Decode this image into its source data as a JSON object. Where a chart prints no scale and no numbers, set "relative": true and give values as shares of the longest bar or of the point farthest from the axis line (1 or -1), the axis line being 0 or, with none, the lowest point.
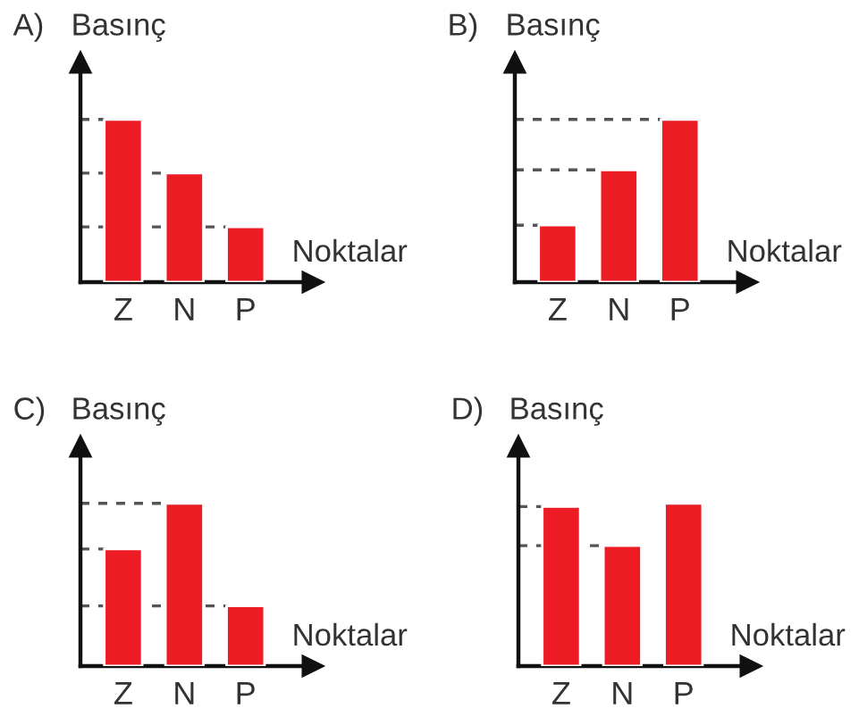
{
  "chart_data": [
    {
      "type": "bar",
      "title": "A)",
      "ylabel": "Basınç",
      "xlabel": "Noktalar",
      "categories": [
        "Z",
        "N",
        "P"
      ],
      "values": [
        1,
        0.67,
        0.34
      ],
      "color": "#ed1c24",
      "relative": true,
      "ref_lines": [
        {
          "axis": "y",
          "value": 1,
          "line_style": "dashed",
          "color": "#555555"
        },
        {
          "axis": "y",
          "value": 0.67,
          "line_style": "dashed",
          "color": "#555555"
        },
        {
          "axis": "y",
          "value": 0.34,
          "line_style": "dashed",
          "color": "#555555"
        }
      ]
    },
    {
      "type": "bar",
      "title": "B)",
      "ylabel": "Basınç",
      "xlabel": "Noktalar",
      "categories": [
        "Z",
        "N",
        "P"
      ],
      "values": [
        0.35,
        0.69,
        1
      ],
      "color": "#ed1c24",
      "relative": true,
      "ref_lines": [
        {
          "axis": "y",
          "value": 1,
          "line_style": "dashed",
          "color": "#555555"
        },
        {
          "axis": "y",
          "value": 0.69,
          "line_style": "dashed",
          "color": "#555555"
        },
        {
          "axis": "y",
          "value": 0.35,
          "line_style": "dashed",
          "color": "#555555"
        }
      ]
    },
    {
      "type": "bar",
      "title": "C)",
      "ylabel": "Basınç",
      "xlabel": "Noktalar",
      "categories": [
        "Z",
        "N",
        "P"
      ],
      "values": [
        0.72,
        1,
        0.37
      ],
      "color": "#ed1c24",
      "relative": true,
      "ref_lines": [
        {
          "axis": "y",
          "value": 1,
          "line_style": "dashed",
          "color": "#555555"
        },
        {
          "axis": "y",
          "value": 0.72,
          "line_style": "dashed",
          "color": "#555555"
        },
        {
          "axis": "y",
          "value": 0.37,
          "line_style": "dashed",
          "color": "#555555"
        }
      ]
    },
    {
      "type": "bar",
      "title": "D)",
      "ylabel": "Basınç",
      "xlabel": "Noktalar",
      "categories": [
        "Z",
        "N",
        "P"
      ],
      "values": [
        0.98,
        0.74,
        1
      ],
      "color": "#ed1c24",
      "relative": true,
      "ref_lines": [
        {
          "axis": "y",
          "value": 0.98,
          "line_style": "dashed",
          "color": "#555555"
        },
        {
          "axis": "y",
          "value": 0.74,
          "line_style": "dashed",
          "color": "#555555"
        }
      ]
    }
  ]
}
